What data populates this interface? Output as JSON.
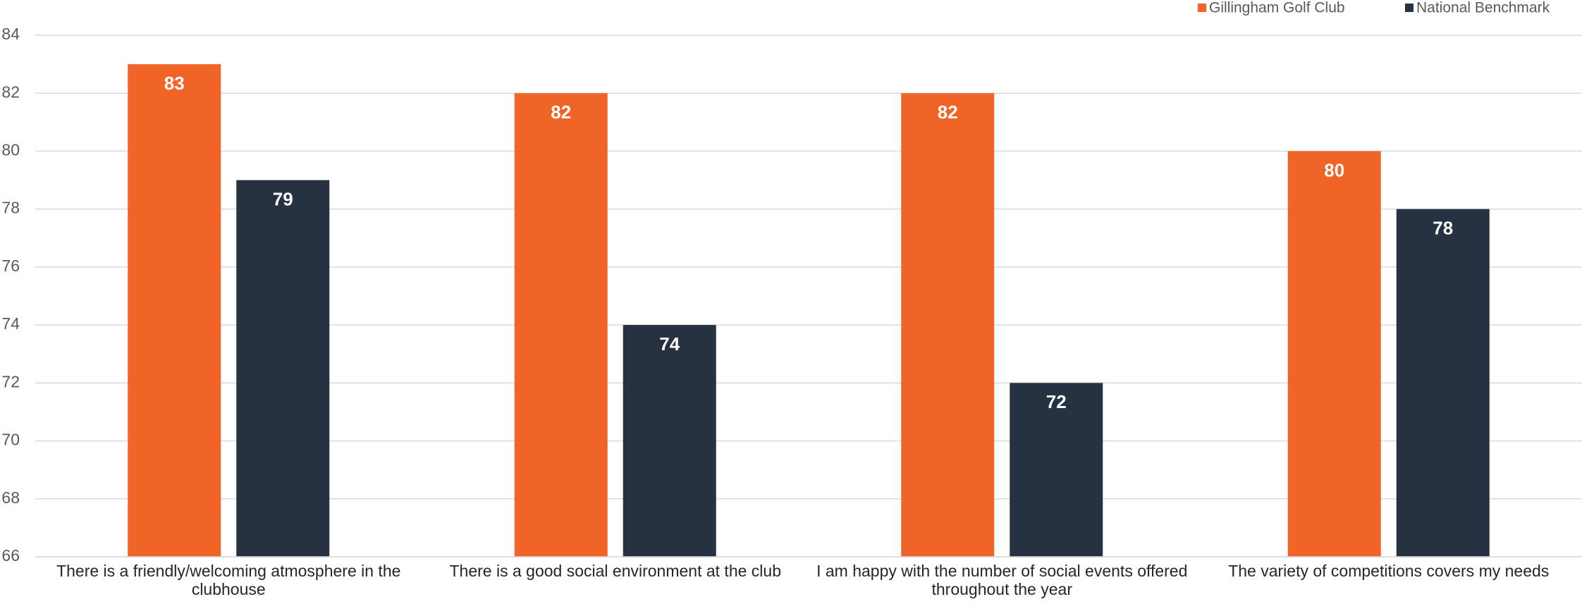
{
  "chart_data": {
    "type": "bar",
    "categories": [
      "There is a friendly/welcoming atmosphere in the clubhouse",
      "There is a good social environment at the club",
      "I am happy with the number of social events offered throughout the year",
      "The variety of competitions covers my needs"
    ],
    "series": [
      {
        "name": "Gillingham Golf Club",
        "color": "#f06428",
        "values": [
          83,
          82,
          82,
          80
        ]
      },
      {
        "name": "National Benchmark",
        "color": "#263241",
        "values": [
          79,
          74,
          72,
          78
        ]
      }
    ],
    "ylim": [
      66,
      84
    ],
    "yticks": [
      66,
      68,
      70,
      72,
      74,
      76,
      78,
      80,
      82,
      84
    ],
    "grid": true,
    "legend": "top-right"
  }
}
